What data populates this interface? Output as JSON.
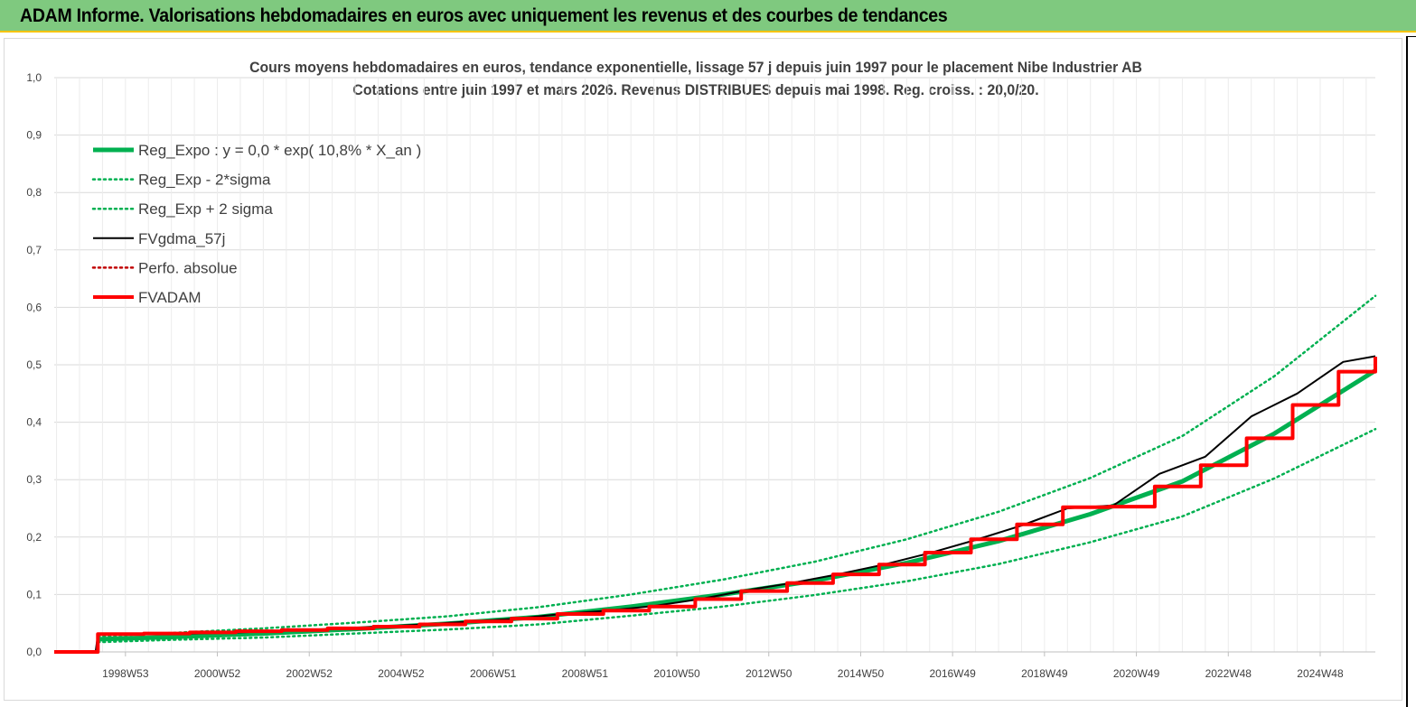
{
  "header": {
    "title": "ADAM Informe. Valorisations hebdomadaires en euros avec uniquement les revenus et des courbes de tendances"
  },
  "colors": {
    "header_bg": "#7fc97f",
    "accent_border": "#f5c400",
    "reg_green": "#00b050",
    "fvadam_red": "#ff0000",
    "fvgdma_black": "#000000",
    "perfo_red": "#c00000",
    "grid": "#d9d9d9"
  },
  "chart_data": {
    "type": "line",
    "title_line1": "Cours moyens hebdomadaires en euros, tendance exponentielle, lissage 57 j depuis juin 1997 pour le placement Nibe Industrier AB",
    "title_line2": "Cotations entre juin 1997 et mars 2026. Revenus DISTRIBUES depuis mai 1998. Reg. croiss. : 20,0/20.",
    "xlabel": "",
    "ylabel": "",
    "ylim": [
      0,
      1.0
    ],
    "yticks": [
      "0,0",
      "0,1",
      "0,2",
      "0,3",
      "0,4",
      "0,5",
      "0,6",
      "0,7",
      "0,8",
      "0,9",
      "1,0"
    ],
    "xlim": [
      1997.45,
      2026.2
    ],
    "xtick_labels": [
      "1998W53",
      "2000W52",
      "2002W52",
      "2004W52",
      "2006W51",
      "2008W51",
      "2010W50",
      "2012W50",
      "2014W50",
      "2016W49",
      "2018W49",
      "2020W49",
      "2022W48",
      "2024W48"
    ],
    "xtick_years": [
      1999.0,
      2001.0,
      2003.0,
      2005.0,
      2007.0,
      2009.0,
      2011.0,
      2013.0,
      2015.0,
      2017.0,
      2019.0,
      2021.0,
      2023.0,
      2025.0
    ],
    "grid": true,
    "legend_position": "top-left",
    "series": [
      {
        "name": "Reg_Expo : y = 0,0 * exp( 10,8% *  X_an )",
        "style": "solid-thick",
        "color": "#00b050",
        "x": [
          1998.4,
          2000,
          2002,
          2004,
          2006,
          2008,
          2010,
          2012,
          2014,
          2016,
          2018,
          2020,
          2022,
          2024,
          2026.2
        ],
        "y": [
          0.022,
          0.026,
          0.032,
          0.04,
          0.049,
          0.061,
          0.079,
          0.1,
          0.124,
          0.155,
          0.193,
          0.24,
          0.297,
          0.38,
          0.49
        ]
      },
      {
        "name": "Reg_Exp - 2*sigma",
        "style": "dotted",
        "color": "#00b050",
        "x": [
          1998.4,
          2000,
          2002,
          2004,
          2006,
          2008,
          2010,
          2012,
          2014,
          2016,
          2018,
          2020,
          2022,
          2024,
          2026.2
        ],
        "y": [
          0.017,
          0.021,
          0.025,
          0.032,
          0.039,
          0.048,
          0.063,
          0.079,
          0.099,
          0.123,
          0.153,
          0.191,
          0.236,
          0.302,
          0.388
        ]
      },
      {
        "name": "Reg_Exp + 2 sigma",
        "style": "dotted",
        "color": "#00b050",
        "x": [
          1998.4,
          2000,
          2002,
          2004,
          2006,
          2008,
          2010,
          2012,
          2014,
          2016,
          2018,
          2020,
          2022,
          2024,
          2026.2
        ],
        "y": [
          0.027,
          0.033,
          0.041,
          0.051,
          0.062,
          0.078,
          0.1,
          0.126,
          0.157,
          0.196,
          0.244,
          0.303,
          0.376,
          0.48,
          0.62
        ]
      },
      {
        "name": "FVgdma_57j",
        "style": "solid-thin",
        "color": "#000000",
        "x": [
          1997.45,
          1998.35,
          1998.4,
          1999.5,
          2000.5,
          2001.5,
          2002.5,
          2003.5,
          2004.5,
          2005.5,
          2006.5,
          2007.5,
          2008.5,
          2009.5,
          2010.5,
          2011.5,
          2012.5,
          2013.5,
          2014.5,
          2015.5,
          2016.5,
          2017.5,
          2018.5,
          2019.5,
          2020.5,
          2021.5,
          2022.5,
          2023.5,
          2024.5,
          2025.5,
          2026.2
        ],
        "y": [
          0.0,
          0.0,
          0.03,
          0.031,
          0.032,
          0.034,
          0.037,
          0.04,
          0.044,
          0.048,
          0.053,
          0.058,
          0.066,
          0.072,
          0.08,
          0.092,
          0.107,
          0.12,
          0.135,
          0.152,
          0.172,
          0.195,
          0.22,
          0.25,
          0.255,
          0.31,
          0.34,
          0.41,
          0.45,
          0.505,
          0.515
        ]
      },
      {
        "name": "Perfo. absolue",
        "style": "dotted",
        "color": "#c00000",
        "x": [],
        "y": []
      },
      {
        "name": "FVADAM",
        "style": "step-thick",
        "color": "#ff0000",
        "x": [
          1997.45,
          1998.4,
          1999.4,
          2000.4,
          2001.4,
          2002.4,
          2003.4,
          2004.4,
          2005.4,
          2006.4,
          2007.4,
          2008.4,
          2009.4,
          2010.4,
          2011.4,
          2012.4,
          2013.4,
          2014.4,
          2015.4,
          2016.4,
          2017.4,
          2018.4,
          2019.4,
          2020.4,
          2021.4,
          2022.4,
          2023.4,
          2024.4,
          2025.4,
          2026.2
        ],
        "y": [
          0.0,
          0.031,
          0.032,
          0.034,
          0.036,
          0.038,
          0.041,
          0.044,
          0.048,
          0.053,
          0.058,
          0.066,
          0.072,
          0.079,
          0.092,
          0.106,
          0.12,
          0.135,
          0.152,
          0.173,
          0.196,
          0.222,
          0.252,
          0.253,
          0.288,
          0.325,
          0.372,
          0.43,
          0.488,
          0.514
        ]
      }
    ]
  }
}
